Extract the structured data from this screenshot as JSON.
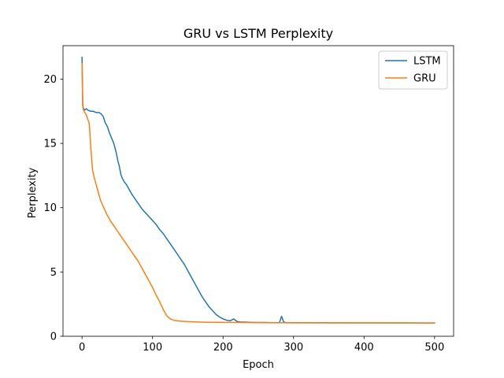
{
  "chart_data": {
    "type": "line",
    "title": "GRU vs LSTM Perplexity",
    "xlabel": "Epoch",
    "ylabel": "Perplexity",
    "xlim": [
      -27,
      527
    ],
    "ylim": [
      0,
      22.6
    ],
    "xticks": [
      0,
      100,
      200,
      300,
      400,
      500
    ],
    "yticks": [
      0,
      5,
      10,
      15,
      20
    ],
    "grid": false,
    "legend_position": "top-right",
    "series": [
      {
        "name": "LSTM",
        "color": "#1f77b4",
        "points": [
          [
            0,
            21.7
          ],
          [
            1,
            18.0
          ],
          [
            2,
            17.7
          ],
          [
            4,
            17.6
          ],
          [
            6,
            17.7
          ],
          [
            8,
            17.6
          ],
          [
            12,
            17.5
          ],
          [
            16,
            17.5
          ],
          [
            20,
            17.4
          ],
          [
            24,
            17.4
          ],
          [
            27,
            17.3
          ],
          [
            30,
            17.1
          ],
          [
            33,
            16.6
          ],
          [
            36,
            16.3
          ],
          [
            39,
            15.8
          ],
          [
            42,
            15.4
          ],
          [
            45,
            15.0
          ],
          [
            48,
            14.4
          ],
          [
            51,
            13.6
          ],
          [
            53,
            13.2
          ],
          [
            55,
            12.6
          ],
          [
            57,
            12.3
          ],
          [
            60,
            12.0
          ],
          [
            63,
            11.8
          ],
          [
            66,
            11.5
          ],
          [
            70,
            11.1
          ],
          [
            75,
            10.7
          ],
          [
            80,
            10.3
          ],
          [
            85,
            9.9
          ],
          [
            90,
            9.6
          ],
          [
            95,
            9.3
          ],
          [
            100,
            9.0
          ],
          [
            105,
            8.7
          ],
          [
            110,
            8.3
          ],
          [
            115,
            8.0
          ],
          [
            120,
            7.6
          ],
          [
            125,
            7.2
          ],
          [
            130,
            6.8
          ],
          [
            135,
            6.4
          ],
          [
            140,
            6.0
          ],
          [
            145,
            5.6
          ],
          [
            150,
            5.1
          ],
          [
            155,
            4.6
          ],
          [
            160,
            4.1
          ],
          [
            165,
            3.6
          ],
          [
            170,
            3.1
          ],
          [
            175,
            2.7
          ],
          [
            180,
            2.3
          ],
          [
            185,
            2.0
          ],
          [
            190,
            1.7
          ],
          [
            195,
            1.5
          ],
          [
            200,
            1.35
          ],
          [
            205,
            1.25
          ],
          [
            210,
            1.2
          ],
          [
            215,
            1.35
          ],
          [
            220,
            1.15
          ],
          [
            225,
            1.1
          ],
          [
            230,
            1.1
          ],
          [
            240,
            1.08
          ],
          [
            250,
            1.07
          ],
          [
            260,
            1.07
          ],
          [
            270,
            1.06
          ],
          [
            280,
            1.06
          ],
          [
            283,
            1.55
          ],
          [
            286,
            1.1
          ],
          [
            290,
            1.06
          ],
          [
            300,
            1.05
          ],
          [
            320,
            1.05
          ],
          [
            350,
            1.05
          ],
          [
            380,
            1.04
          ],
          [
            400,
            1.04
          ],
          [
            430,
            1.04
          ],
          [
            460,
            1.04
          ],
          [
            480,
            1.03
          ],
          [
            500,
            1.03
          ]
        ]
      },
      {
        "name": "GRU",
        "color": "#ff7f0e",
        "points": [
          [
            0,
            21.2
          ],
          [
            1,
            17.9
          ],
          [
            2,
            17.6
          ],
          [
            4,
            17.4
          ],
          [
            6,
            17.2
          ],
          [
            8,
            16.9
          ],
          [
            10,
            16.6
          ],
          [
            11,
            16.0
          ],
          [
            12,
            15.0
          ],
          [
            13,
            14.3
          ],
          [
            14,
            13.5
          ],
          [
            15,
            12.9
          ],
          [
            17,
            12.4
          ],
          [
            20,
            11.8
          ],
          [
            23,
            11.2
          ],
          [
            26,
            10.6
          ],
          [
            30,
            10.1
          ],
          [
            35,
            9.5
          ],
          [
            40,
            9.0
          ],
          [
            45,
            8.6
          ],
          [
            50,
            8.2
          ],
          [
            55,
            7.8
          ],
          [
            60,
            7.4
          ],
          [
            65,
            7.0
          ],
          [
            70,
            6.6
          ],
          [
            75,
            6.2
          ],
          [
            80,
            5.8
          ],
          [
            85,
            5.3
          ],
          [
            90,
            4.8
          ],
          [
            95,
            4.3
          ],
          [
            100,
            3.8
          ],
          [
            105,
            3.2
          ],
          [
            110,
            2.7
          ],
          [
            115,
            2.1
          ],
          [
            120,
            1.6
          ],
          [
            125,
            1.35
          ],
          [
            130,
            1.25
          ],
          [
            135,
            1.2
          ],
          [
            140,
            1.17
          ],
          [
            150,
            1.14
          ],
          [
            160,
            1.12
          ],
          [
            170,
            1.1
          ],
          [
            180,
            1.09
          ],
          [
            200,
            1.08
          ],
          [
            220,
            1.07
          ],
          [
            250,
            1.06
          ],
          [
            280,
            1.05
          ],
          [
            300,
            1.05
          ],
          [
            350,
            1.04
          ],
          [
            400,
            1.04
          ],
          [
            450,
            1.03
          ],
          [
            500,
            1.03
          ]
        ]
      }
    ]
  }
}
